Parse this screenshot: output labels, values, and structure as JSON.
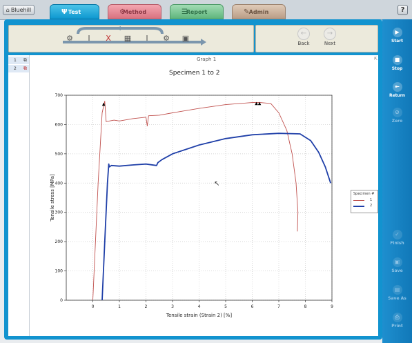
{
  "topbar": {
    "home_label": "Bluehill",
    "help_label": "?"
  },
  "tabs": [
    {
      "label": "Test",
      "icon": "load-frame-icon",
      "active": true,
      "color": "#0e98d0"
    },
    {
      "label": "Method",
      "icon": "method-icon",
      "active": false,
      "color": "#d8727f"
    },
    {
      "label": "Report",
      "icon": "report-icon",
      "active": false,
      "color": "#5fb57c"
    },
    {
      "label": "Admin",
      "icon": "admin-icon",
      "active": false,
      "color": "#b99d86"
    }
  ],
  "workflow_steps": [
    {
      "icon": "setup-icon"
    },
    {
      "icon": "specimen-icon"
    },
    {
      "icon": "test-icon",
      "active": true
    },
    {
      "icon": "calculator-icon"
    },
    {
      "icon": "specimen-icon"
    },
    {
      "icon": "post-test-icon"
    },
    {
      "icon": "save-icon"
    }
  ],
  "nav": {
    "back_label": "Back",
    "next_label": "Next"
  },
  "sidebar": [
    {
      "label": "Start",
      "icon": "start-icon",
      "enabled": true
    },
    {
      "label": "Stop",
      "icon": "stop-icon",
      "enabled": true
    },
    {
      "label": "Return",
      "icon": "return-icon",
      "enabled": true
    },
    {
      "label": "Zero",
      "icon": "zero-icon",
      "enabled": false
    },
    {
      "label": "Finish",
      "icon": "finish-icon",
      "enabled": false
    },
    {
      "label": "Save",
      "icon": "save-icon",
      "enabled": false
    },
    {
      "label": "Save As",
      "icon": "save-as-icon",
      "enabled": false
    },
    {
      "label": "Print",
      "icon": "print-icon",
      "enabled": false
    }
  ],
  "specimens": [
    {
      "number": "1",
      "icon": "specimen-icon"
    },
    {
      "number": "2",
      "icon": "specimen-broken-icon"
    }
  ],
  "graph": {
    "panel_title": "Graph 1"
  },
  "chart_data": {
    "type": "line",
    "title": "Specimen 1 to 2",
    "xlabel": "Tensile strain (Strain 2) [%]",
    "ylabel": "Tensile stress [MPa]",
    "xlim": [
      -1,
      9
    ],
    "ylim": [
      0,
      700
    ],
    "x_ticks": [
      0,
      1,
      2,
      3,
      4,
      5,
      6,
      7,
      8,
      9
    ],
    "y_ticks": [
      0,
      100,
      200,
      300,
      400,
      500,
      600,
      700
    ],
    "grid": true,
    "legend": {
      "title": "Specimen #",
      "placement": "right"
    },
    "series": [
      {
        "name": "1",
        "color": "#c0504d",
        "x": [
          0.0,
          0.2,
          0.35,
          0.45,
          0.5,
          0.8,
          1.0,
          1.5,
          2.0,
          2.05,
          2.1,
          2.5,
          3.0,
          4.0,
          5.0,
          6.0,
          6.3,
          6.7,
          7.0,
          7.3,
          7.5,
          7.65,
          7.72,
          7.7
        ],
        "y": [
          0,
          400,
          640,
          680,
          610,
          615,
          612,
          620,
          625,
          595,
          630,
          632,
          640,
          655,
          668,
          675,
          675,
          672,
          640,
          580,
          500,
          400,
          300,
          235
        ]
      },
      {
        "name": "2",
        "color": "#1f3fa8",
        "x": [
          0.35,
          0.45,
          0.55,
          0.6,
          0.62,
          0.7,
          1.0,
          1.5,
          2.0,
          2.4,
          2.45,
          2.6,
          3.0,
          4.0,
          5.0,
          6.0,
          7.0,
          7.8,
          8.2,
          8.5,
          8.75,
          8.95
        ],
        "y": [
          0,
          200,
          400,
          465,
          455,
          460,
          458,
          462,
          465,
          460,
          470,
          480,
          500,
          530,
          552,
          565,
          570,
          568,
          545,
          505,
          455,
          400
        ]
      }
    ]
  }
}
